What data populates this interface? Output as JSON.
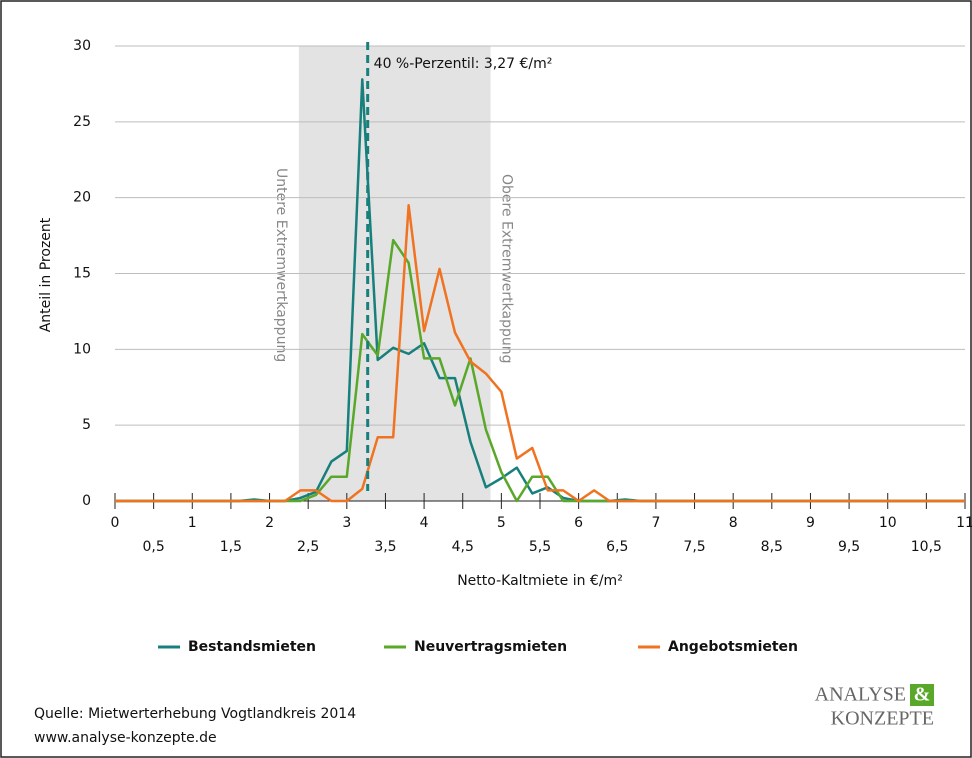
{
  "chart_data": {
    "type": "line",
    "x_label": "Netto-Kaltmiete in €/m²",
    "y_label": "Anteil in Prozent",
    "x": [
      0,
      0.2,
      0.4,
      0.6,
      0.8,
      1,
      1.2,
      1.4,
      1.6,
      1.8,
      2,
      2.2,
      2.4,
      2.6,
      2.8,
      3,
      3.2,
      3.4,
      3.6,
      3.8,
      4,
      4.2,
      4.4,
      4.6,
      4.8,
      5,
      5.2,
      5.4,
      5.6,
      5.8,
      6,
      6.2,
      6.4,
      6.6,
      6.8,
      7,
      7.2,
      7.4,
      7.6,
      7.8,
      8,
      8.2,
      8.4,
      8.6,
      8.8,
      9,
      9.2,
      9.4,
      9.6,
      9.8,
      10,
      10.2,
      10.4,
      10.6,
      10.8,
      11
    ],
    "series": [
      {
        "name": "Bestandsmieten",
        "color": "#17807c",
        "values": [
          0,
          0,
          0,
          0,
          0,
          0,
          0,
          0,
          0,
          0.1,
          0,
          0,
          0.2,
          0.6,
          2.6,
          3.3,
          27.8,
          9.3,
          10.1,
          9.7,
          10.4,
          8.1,
          8.1,
          3.9,
          0.9,
          1.5,
          2.2,
          0.5,
          0.9,
          0.2,
          0,
          0,
          0,
          0.1,
          0,
          0,
          0,
          0,
          0,
          0,
          0,
          0,
          0,
          0,
          0,
          0,
          0,
          0,
          0,
          0,
          0,
          0,
          0,
          0,
          0,
          0
        ]
      },
      {
        "name": "Neuvertragsmieten",
        "color": "#5aa82a",
        "values": [
          0,
          0,
          0,
          0,
          0,
          0,
          0,
          0,
          0,
          0,
          0,
          0,
          0,
          0.4,
          1.6,
          1.6,
          11,
          9.6,
          17.2,
          15.7,
          9.4,
          9.4,
          6.3,
          9.4,
          4.7,
          1.9,
          0,
          1.6,
          1.6,
          0,
          0,
          0,
          0,
          0,
          0,
          0,
          0,
          0,
          0,
          0,
          0,
          0,
          0,
          0,
          0,
          0,
          0,
          0,
          0,
          0,
          0,
          0,
          0,
          0,
          0,
          0
        ]
      },
      {
        "name": "Angebotsmieten",
        "color": "#f07322",
        "values": [
          0,
          0,
          0,
          0,
          0,
          0,
          0,
          0,
          0,
          0,
          0,
          0,
          0.7,
          0.7,
          0,
          0,
          0.8,
          4.2,
          4.2,
          19.5,
          11.2,
          15.3,
          11.1,
          9.2,
          8.4,
          7.2,
          2.8,
          3.5,
          0.7,
          0.7,
          0,
          0.7,
          0,
          0,
          0,
          0,
          0,
          0,
          0,
          0,
          0,
          0,
          0,
          0,
          0,
          0,
          0,
          0,
          0,
          0,
          0,
          0,
          0,
          0,
          0,
          0
        ]
      }
    ],
    "xlim": [
      0,
      11
    ],
    "ylim": [
      0,
      30
    ],
    "xticks": [
      0,
      1,
      2,
      3,
      4,
      5,
      6,
      7,
      8,
      9,
      10,
      11
    ],
    "xticks_minor": [
      {
        "value": 0.5,
        "label": "0,5"
      },
      {
        "value": 1.5,
        "label": "1,5"
      },
      {
        "value": 2.5,
        "label": "2,5"
      },
      {
        "value": 3.5,
        "label": "3,5"
      },
      {
        "value": 4.5,
        "label": "4,5"
      },
      {
        "value": 5.5,
        "label": "5,5"
      },
      {
        "value": 6.5,
        "label": "6,5"
      },
      {
        "value": 7.5,
        "label": "7,5"
      },
      {
        "value": 8.5,
        "label": "8,5"
      },
      {
        "value": 9.5,
        "label": "9,5"
      },
      {
        "value": 10.5,
        "label": "10,5"
      }
    ],
    "yticks": [
      0,
      5,
      10,
      15,
      20,
      25,
      30
    ],
    "grid": true,
    "band": {
      "range": [
        2.38,
        4.86
      ],
      "color": "#e3e3e3",
      "lower_label": "Untere Extremwertkappung",
      "upper_label": "Obere Extremwertkappung"
    },
    "percentile": {
      "value": 3.27,
      "label": "40 %-Perzentil: 3,27 €/m²",
      "color": "#17807c"
    }
  },
  "source": [
    "Quelle: Mietwerterhebung Vogtlandkreis 2014",
    "www.analyse-konzepte.de"
  ],
  "logo": {
    "line1": "ANALYSE",
    "ampersand": "&",
    "line2": "KONZEPTE"
  }
}
